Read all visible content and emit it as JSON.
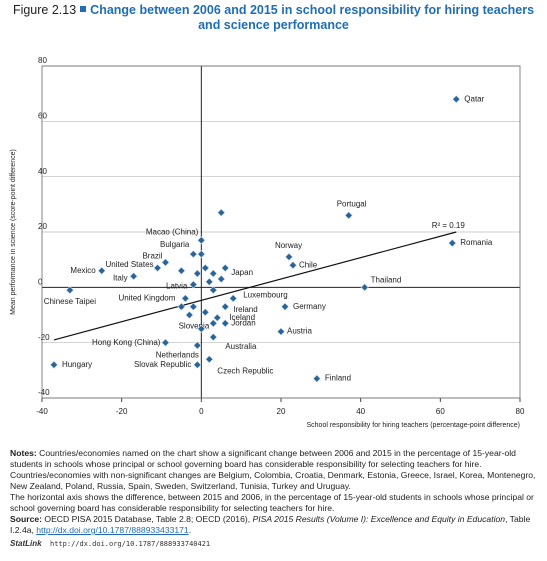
{
  "figure": "Figure 2.13",
  "chart_data": {
    "type": "scatter",
    "title": "Change between 2006 and 2015 in school responsibility for hiring teachers and science performance",
    "xlabel": "School responsibility for hiring teachers (percentage-point difference)",
    "ylabel": "Mean performance in science (score-point difference)",
    "xlim": [
      -40,
      80
    ],
    "xticks": [
      -40,
      -20,
      0,
      20,
      40,
      60,
      80
    ],
    "ylim": [
      -40,
      80
    ],
    "yticks": [
      -40,
      -20,
      0,
      20,
      40,
      60,
      80
    ],
    "grid": true,
    "color": "#2a6496",
    "highlight_color": "#1f6db5",
    "labels": [
      "Qatar",
      "Portugal",
      "Romania",
      "Thailand",
      "Norway",
      "Chile",
      "Macao (China)",
      "Bulgaria",
      "Brazil",
      "United States",
      "Mexico",
      "Italy",
      "Latvia",
      "Japan",
      "Chinese Taipei",
      "United Kingdom",
      "Luxembourg",
      "Ireland",
      "Germany",
      "Iceland",
      "Slovenia",
      "Jordan",
      "Austria",
      "Australia",
      "Hong Kong (China)",
      "Netherlands",
      "Slovak Republic",
      "Czech Republic",
      "Hungary",
      "Finland",
      null,
      null,
      null,
      null,
      null,
      null,
      null,
      null,
      null,
      null,
      null,
      null,
      null,
      null
    ],
    "highlight": [
      true,
      false,
      true,
      true,
      false,
      false,
      true,
      true,
      true,
      false,
      false,
      false,
      false,
      false,
      true,
      false,
      false,
      false,
      false,
      false,
      false,
      true,
      false,
      false,
      true,
      false,
      false,
      false,
      false,
      false,
      false,
      false,
      false,
      false,
      false,
      false,
      false,
      false,
      false,
      false,
      false,
      false,
      false,
      false
    ],
    "x": [
      64,
      37,
      63,
      41,
      22,
      23,
      0,
      -2,
      -9,
      -11,
      -25,
      -17,
      -2,
      6,
      -33,
      -4,
      8,
      6,
      21,
      4,
      3,
      6,
      20,
      3,
      -9,
      -1,
      -1,
      2,
      -37,
      29,
      5,
      0,
      -5,
      1,
      3,
      -1,
      5,
      2,
      3,
      -5,
      -2,
      -3,
      1,
      0
    ],
    "values": [
      68,
      26,
      16,
      0,
      11,
      8,
      17,
      12,
      9,
      7,
      6,
      4,
      1,
      7,
      -1,
      -4,
      -4,
      -7,
      -7,
      -11,
      -13,
      -13,
      -16,
      -18,
      -20,
      -21,
      -28,
      -26,
      -28,
      -33,
      27,
      12,
      6,
      7,
      5,
      5,
      3,
      2,
      -1,
      -7,
      -7,
      -10,
      -9,
      -15
    ],
    "trendline": {
      "x": [
        -37,
        64
      ],
      "y": [
        -19,
        20
      ],
      "label": "R² = 0.19"
    }
  },
  "notes": {
    "label": "Notes:",
    "p1": "Countries/economies named on the chart show a significant change between 2006 and 2015 in the percentage of 15-year-old students in schools whose principal or school governing board has considerable responsibility for selecting teachers for hire. Countries/economies with non-significant changes are Belgium, Colombia, Croatia, Denmark, Estonia, Greece, Israel, Korea, Montenegro, New Zealand, Poland, Russia, Spain, Sweden, Switzerland, Tunisia, Turkey and Uruguay.",
    "p2": "The horizontal axis shows the difference, between 2015 and 2006, in the percentage of 15-year-old students in schools whose principal or school governing board has considerable responsibility for selecting teachers for hire."
  },
  "source": {
    "label": "Source:",
    "text1": "OECD PISA 2015 Database, Table 2.8; OECD (2016),",
    "italic": "PISA 2015 Results (Volume I): Excellence and Equity in Education",
    "text2": ", Table I.2.4a,",
    "link": "http://dx.doi.org/10.1787/888933433171",
    "end": "."
  },
  "statlink": {
    "label": "StatLink",
    "url": "http://dx.doi.org/10.1787/888933740421"
  }
}
